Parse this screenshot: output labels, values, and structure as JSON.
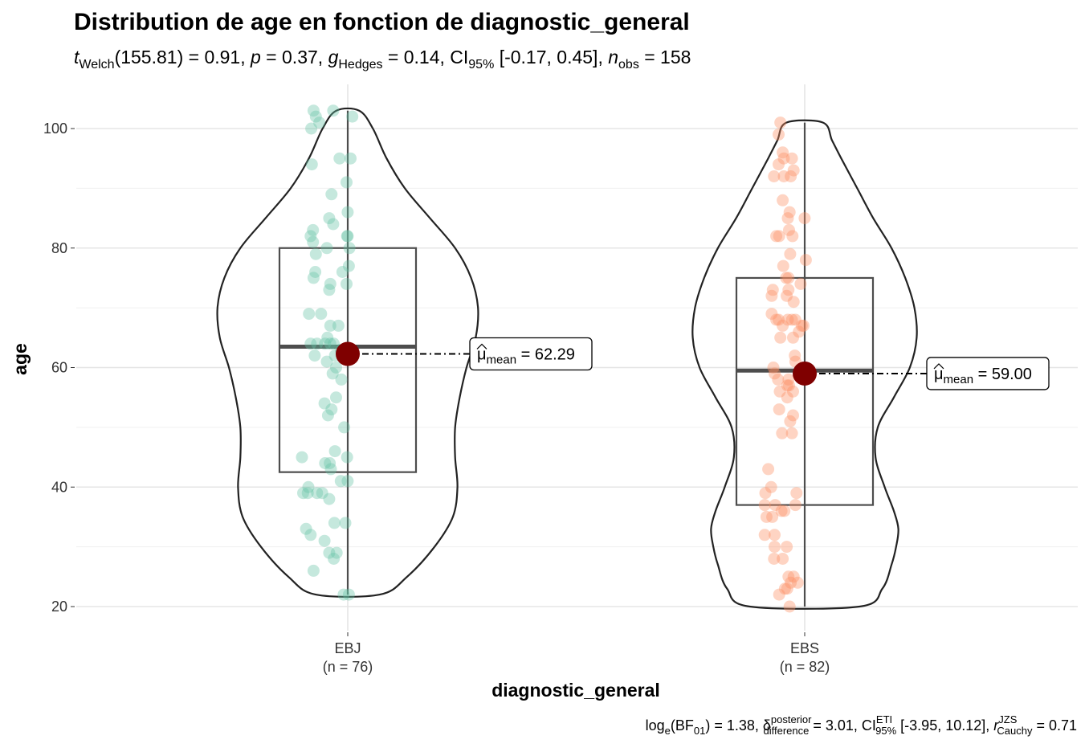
{
  "chart_data": {
    "type": "violin-box-scatter",
    "title": "Distribution de age en fonction de diagnostic_general",
    "subtitle": {
      "t_symbol": "t",
      "t_sub": "Welch",
      "t_df_value": "(155.81) = 0.91, ",
      "p_symbol": "p",
      "p_value": " = 0.37, ",
      "g_symbol": "g",
      "g_sub": "Hedges",
      "g_value": " = 0.14, CI",
      "ci_sub": "95%",
      "ci_value": " [-0.17, 0.45], ",
      "n_symbol": "n",
      "n_sub": "obs",
      "n_value": " = 158"
    },
    "xlabel": "diagnostic_general",
    "ylabel": "age",
    "ylim": [
      15,
      106
    ],
    "y_ticks": [
      20,
      40,
      60,
      80,
      100
    ],
    "grid": true,
    "groups": [
      {
        "category": "EBJ",
        "n_label": "(n = 76)",
        "point_color": "#66c2a5",
        "box": {
          "q1": 42.5,
          "median": 63.5,
          "q3": 80,
          "min": 22,
          "max": 103
        },
        "mean": 62.29,
        "mean_label_prefix": "μ",
        "mean_label_sub": "mean",
        "mean_label_value": " = 62.29",
        "violin": [
          [
            22,
            0.07
          ],
          [
            25,
            0.13
          ],
          [
            30,
            0.19
          ],
          [
            35,
            0.23
          ],
          [
            40,
            0.24
          ],
          [
            45,
            0.235
          ],
          [
            50,
            0.235
          ],
          [
            55,
            0.245
          ],
          [
            60,
            0.26
          ],
          [
            65,
            0.28
          ],
          [
            70,
            0.285
          ],
          [
            75,
            0.27
          ],
          [
            80,
            0.235
          ],
          [
            85,
            0.18
          ],
          [
            90,
            0.125
          ],
          [
            95,
            0.085
          ],
          [
            100,
            0.055
          ],
          [
            103,
            0.025
          ]
        ],
        "points": [
          [
            27,
            103
          ],
          [
            31,
            102
          ],
          [
            37,
            101
          ],
          [
            61,
            103
          ],
          [
            94,
            102
          ],
          [
            23,
            100
          ],
          [
            24,
            94
          ],
          [
            72,
            95
          ],
          [
            91,
            95
          ],
          [
            58,
            89
          ],
          [
            84,
            91
          ],
          [
            86,
            86
          ],
          [
            54,
            85
          ],
          [
            61,
            84
          ],
          [
            26,
            83
          ],
          [
            22,
            82
          ],
          [
            26,
            81
          ],
          [
            86,
            82
          ],
          [
            89,
            80
          ],
          [
            31,
            79
          ],
          [
            50,
            80
          ],
          [
            85,
            82
          ],
          [
            88,
            77
          ],
          [
            30,
            76
          ],
          [
            27,
            75
          ],
          [
            77,
            76
          ],
          [
            84,
            74
          ],
          [
            54,
            73
          ],
          [
            56,
            74
          ],
          [
            19,
            69
          ],
          [
            40,
            69
          ],
          [
            56,
            67
          ],
          [
            70,
            67
          ],
          [
            22,
            64
          ],
          [
            33,
            64
          ],
          [
            51,
            65
          ],
          [
            62,
            64
          ],
          [
            29,
            62
          ],
          [
            47,
            64
          ],
          [
            56,
            64
          ],
          [
            64,
            62
          ],
          [
            74,
            63
          ],
          [
            50,
            61
          ],
          [
            66,
            60
          ],
          [
            75,
            58
          ],
          [
            60,
            59
          ],
          [
            46,
            54
          ],
          [
            66,
            55
          ],
          [
            52,
            52
          ],
          [
            58,
            53
          ],
          [
            80,
            50
          ],
          [
            55,
            44
          ],
          [
            64,
            46
          ],
          [
            47,
            44
          ],
          [
            85,
            45
          ],
          [
            7,
            45
          ],
          [
            57,
            43
          ],
          [
            74,
            41
          ],
          [
            86,
            41
          ],
          [
            18,
            40
          ],
          [
            33,
            39
          ],
          [
            54,
            38
          ],
          [
            9,
            39
          ],
          [
            17,
            39
          ],
          [
            42,
            39
          ],
          [
            14,
            33
          ],
          [
            22,
            32
          ],
          [
            63,
            34
          ],
          [
            82,
            34
          ],
          [
            46,
            31
          ],
          [
            54,
            29
          ],
          [
            62,
            28
          ],
          [
            67,
            29
          ],
          [
            27,
            26
          ],
          [
            88,
            22
          ],
          [
            79,
            22
          ]
        ]
      },
      {
        "category": "EBS",
        "n_label": "(n = 82)",
        "point_color": "#fc8d62",
        "box": {
          "q1": 37,
          "median": 59.5,
          "q3": 75,
          "min": 20,
          "max": 101
        },
        "mean": 59.0,
        "mean_label_prefix": "μ",
        "mean_label_sub": "mean",
        "mean_label_value": " = 59.00",
        "violin": [
          [
            20,
            0.12
          ],
          [
            23,
            0.17
          ],
          [
            27,
            0.19
          ],
          [
            30,
            0.2
          ],
          [
            33,
            0.205
          ],
          [
            36,
            0.195
          ],
          [
            40,
            0.175
          ],
          [
            45,
            0.155
          ],
          [
            50,
            0.16
          ],
          [
            55,
            0.195
          ],
          [
            60,
            0.23
          ],
          [
            65,
            0.245
          ],
          [
            70,
            0.24
          ],
          [
            75,
            0.22
          ],
          [
            80,
            0.19
          ],
          [
            85,
            0.15
          ],
          [
            90,
            0.115
          ],
          [
            95,
            0.08
          ],
          [
            98,
            0.06
          ],
          [
            101,
            0.04
          ]
        ],
        "points": [
          [
            44,
            101
          ],
          [
            41,
            99
          ],
          [
            64,
            95
          ],
          [
            48,
            96
          ],
          [
            50,
            95
          ],
          [
            41,
            94
          ],
          [
            50,
            92
          ],
          [
            67,
            93
          ],
          [
            62,
            92
          ],
          [
            33,
            92
          ],
          [
            48,
            88
          ],
          [
            86,
            85
          ],
          [
            57,
            85
          ],
          [
            60,
            86
          ],
          [
            59,
            83
          ],
          [
            37,
            82
          ],
          [
            42,
            82
          ],
          [
            65,
            82
          ],
          [
            88,
            78
          ],
          [
            61,
            79
          ],
          [
            49,
            77
          ],
          [
            54,
            75
          ],
          [
            58,
            75
          ],
          [
            58,
            73
          ],
          [
            31,
            73
          ],
          [
            29,
            72
          ],
          [
            67,
            71
          ],
          [
            79,
            74
          ],
          [
            55,
            72
          ],
          [
            29,
            69
          ],
          [
            37,
            68
          ],
          [
            57,
            68
          ],
          [
            64,
            68
          ],
          [
            41,
            68
          ],
          [
            48,
            67
          ],
          [
            70,
            68
          ],
          [
            81,
            67
          ],
          [
            76,
            66
          ],
          [
            84,
            67
          ],
          [
            66,
            65
          ],
          [
            44,
            65
          ],
          [
            69,
            62
          ],
          [
            70,
            61
          ],
          [
            32,
            60
          ],
          [
            34,
            59
          ],
          [
            40,
            58
          ],
          [
            56,
            57
          ],
          [
            59,
            57
          ],
          [
            43,
            56
          ],
          [
            58,
            58
          ],
          [
            56,
            55
          ],
          [
            66,
            56
          ],
          [
            42,
            53
          ],
          [
            47,
            49
          ],
          [
            66,
            52
          ],
          [
            61,
            51
          ],
          [
            64,
            49
          ],
          [
            23,
            43
          ],
          [
            28,
            40
          ],
          [
            35,
            37
          ],
          [
            18,
            39
          ],
          [
            17,
            37
          ],
          [
            20,
            35
          ],
          [
            30,
            35
          ],
          [
            51,
            36
          ],
          [
            34,
            32
          ],
          [
            17,
            32
          ],
          [
            46,
            36
          ],
          [
            70,
            37
          ],
          [
            72,
            39
          ],
          [
            55,
            30
          ],
          [
            33,
            28
          ],
          [
            34,
            30
          ],
          [
            48,
            28
          ],
          [
            58,
            25
          ],
          [
            67,
            25
          ],
          [
            56,
            23
          ],
          [
            74,
            24
          ],
          [
            62,
            24
          ],
          [
            52,
            23
          ],
          [
            42,
            22
          ],
          [
            60,
            20
          ]
        ]
      }
    ],
    "caption": {
      "log_prefix": "log",
      "log_sub": "e",
      "bf_open": "(BF",
      "bf_sub": "01",
      "bf_close": ") = 1.38, ",
      "delta_symbol": "δ",
      "delta_sup": "posterior",
      "delta_sub": "difference",
      "delta_value": " = 3.01, CI",
      "ci_sup": "ETI",
      "ci_sub": "95%",
      "ci_value": " [-3.95, 10.12], ",
      "r_symbol": "r",
      "r_sup": "JZS",
      "r_sub": "Cauchy",
      "r_value": " = 0.71"
    },
    "colors": {
      "mean_point": "#7f0000",
      "box_stroke": "#4d4d4d",
      "violin_stroke": "#222222",
      "grid": "#e5e5e5"
    }
  }
}
